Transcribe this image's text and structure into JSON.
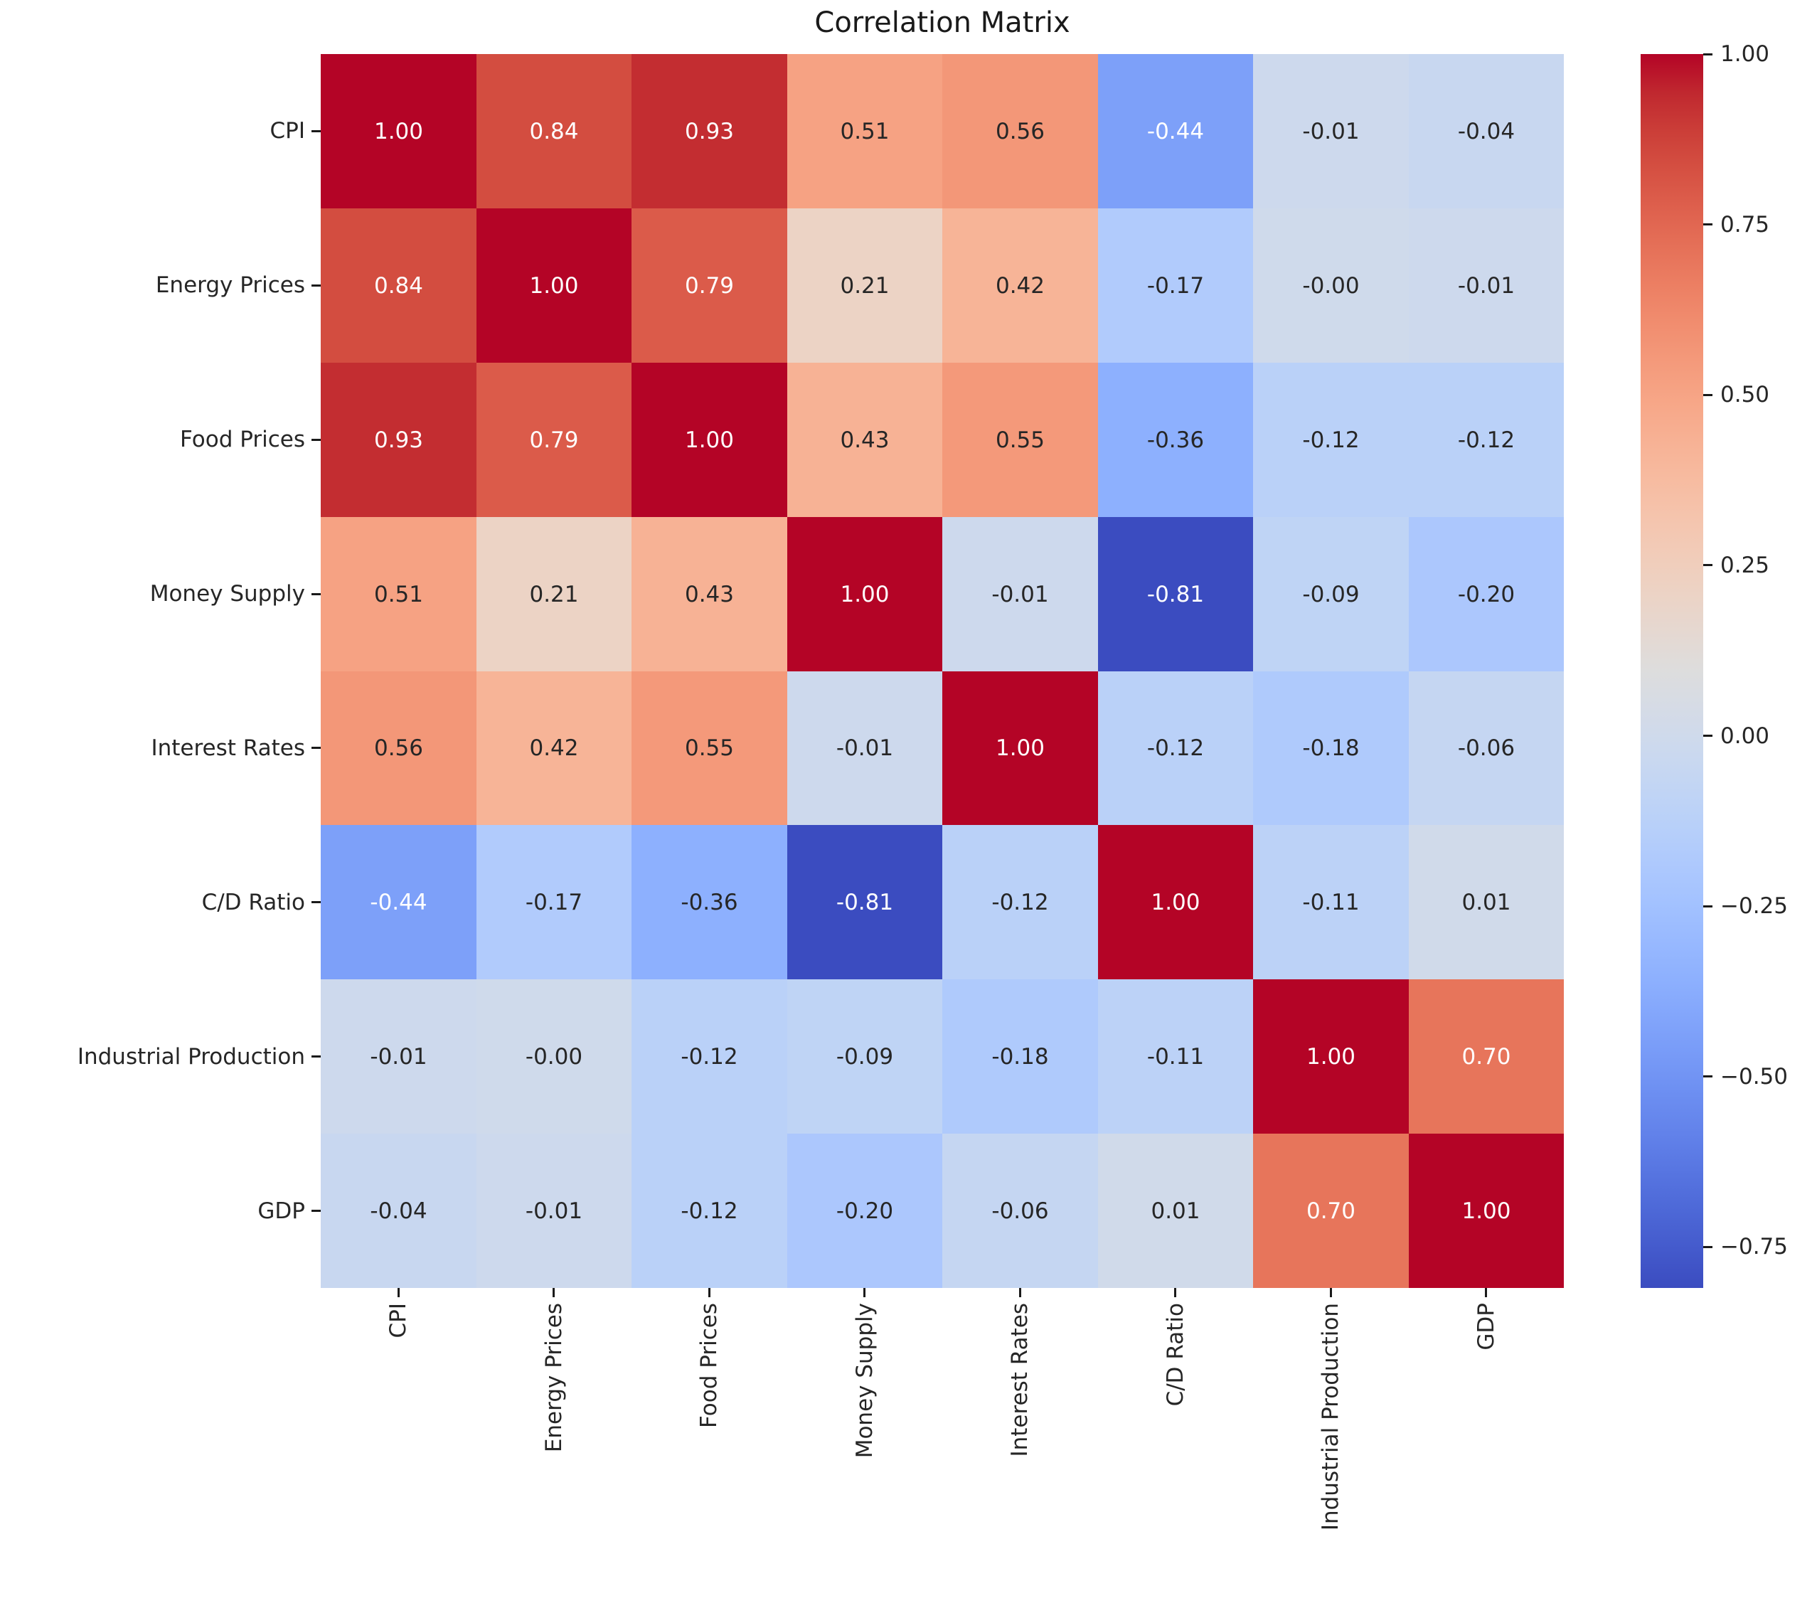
{
  "chart_data": {
    "type": "heatmap",
    "title": "Correlation Matrix",
    "categories": [
      "CPI",
      "Energy Prices",
      "Food Prices",
      "Money Supply",
      "Interest Rates",
      "C/D Ratio",
      "Industrial Production",
      "GDP"
    ],
    "matrix": [
      [
        1.0,
        0.84,
        0.93,
        0.51,
        0.56,
        -0.44,
        -0.01,
        -0.04
      ],
      [
        0.84,
        1.0,
        0.79,
        0.21,
        0.42,
        -0.17,
        -0.0,
        -0.01
      ],
      [
        0.93,
        0.79,
        1.0,
        0.43,
        0.55,
        -0.36,
        -0.12,
        -0.12
      ],
      [
        0.51,
        0.21,
        0.43,
        1.0,
        -0.01,
        -0.81,
        -0.09,
        -0.2
      ],
      [
        0.56,
        0.42,
        0.55,
        -0.01,
        1.0,
        -0.12,
        -0.18,
        -0.06
      ],
      [
        -0.44,
        -0.17,
        -0.36,
        -0.81,
        -0.12,
        1.0,
        -0.11,
        0.01
      ],
      [
        -0.01,
        -0.0,
        -0.12,
        -0.09,
        -0.18,
        -0.11,
        1.0,
        0.7
      ],
      [
        -0.04,
        -0.01,
        -0.12,
        -0.2,
        -0.06,
        0.01,
        0.7,
        1.0
      ]
    ],
    "annotations": [
      [
        "1.00",
        "0.84",
        "0.93",
        "0.51",
        "0.56",
        "-0.44",
        "-0.01",
        "-0.04"
      ],
      [
        "0.84",
        "1.00",
        "0.79",
        "0.21",
        "0.42",
        "-0.17",
        "-0.00",
        "-0.01"
      ],
      [
        "0.93",
        "0.79",
        "1.00",
        "0.43",
        "0.55",
        "-0.36",
        "-0.12",
        "-0.12"
      ],
      [
        "0.51",
        "0.21",
        "0.43",
        "1.00",
        "-0.01",
        "-0.81",
        "-0.09",
        "-0.20"
      ],
      [
        "0.56",
        "0.42",
        "0.55",
        "-0.01",
        "1.00",
        "-0.12",
        "-0.18",
        "-0.06"
      ],
      [
        "-0.44",
        "-0.17",
        "-0.36",
        "-0.81",
        "-0.12",
        "1.00",
        "-0.11",
        "0.01"
      ],
      [
        "-0.01",
        "-0.00",
        "-0.12",
        "-0.09",
        "-0.18",
        "-0.11",
        "1.00",
        "0.70"
      ],
      [
        "-0.04",
        "-0.01",
        "-0.12",
        "-0.20",
        "-0.06",
        "0.01",
        "0.70",
        "1.00"
      ]
    ],
    "colormap": "coolwarm",
    "vmin": -0.81,
    "vmax": 1.0,
    "colorbar_position": "right",
    "colorbar_ticks": [
      {
        "value": 1.0,
        "label": "1.00"
      },
      {
        "value": 0.75,
        "label": "0.75"
      },
      {
        "value": 0.5,
        "label": "0.50"
      },
      {
        "value": 0.25,
        "label": "0.25"
      },
      {
        "value": 0.0,
        "label": "0.00"
      },
      {
        "value": -0.25,
        "label": "−0.25"
      },
      {
        "value": -0.5,
        "label": "−0.50"
      },
      {
        "value": -0.75,
        "label": "−0.75"
      }
    ],
    "grid": false
  },
  "text_colors": {
    "dark_annotation": "#262626",
    "light_annotation": "#ffffff",
    "tick_label": "#262626",
    "title": "#1a1a1a"
  }
}
